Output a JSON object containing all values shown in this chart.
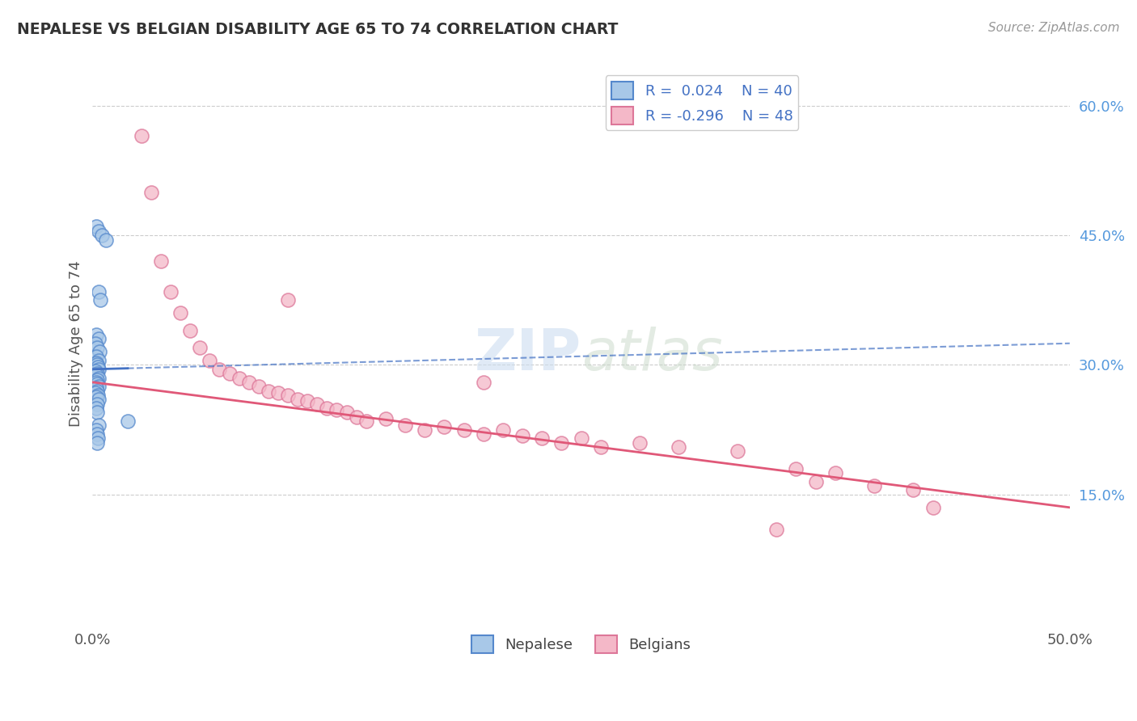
{
  "title": "NEPALESE VS BELGIAN DISABILITY AGE 65 TO 74 CORRELATION CHART",
  "source": "Source: ZipAtlas.com",
  "ylabel": "Disability Age 65 to 74",
  "xlim": [
    0.0,
    50.0
  ],
  "ylim": [
    0.0,
    65.0
  ],
  "nepalese_R": 0.024,
  "nepalese_N": 40,
  "belgian_R": -0.296,
  "belgian_N": 48,
  "nepalese_color": "#a8c8e8",
  "belgian_color": "#f4b8c8",
  "nepalese_edge_color": "#5588cc",
  "belgian_edge_color": "#dd7799",
  "nepalese_line_color": "#4472c4",
  "belgian_line_color": "#e05878",
  "nepalese_x": [
    0.2,
    0.3,
    0.5,
    0.7,
    0.3,
    0.4,
    0.2,
    0.3,
    0.15,
    0.25,
    0.35,
    0.2,
    0.3,
    0.18,
    0.22,
    0.28,
    0.32,
    0.15,
    0.25,
    0.2,
    0.3,
    0.25,
    0.18,
    0.22,
    0.3,
    0.2,
    0.25,
    0.15,
    0.28,
    0.2,
    0.3,
    0.22,
    0.18,
    0.25,
    1.8,
    0.3,
    0.2,
    0.25,
    0.28,
    0.22
  ],
  "nepalese_y": [
    46.0,
    45.5,
    45.0,
    44.5,
    38.5,
    37.5,
    33.5,
    33.0,
    32.5,
    32.0,
    31.5,
    31.0,
    30.5,
    30.2,
    30.0,
    29.8,
    29.5,
    29.3,
    29.0,
    28.8,
    28.5,
    28.3,
    28.0,
    27.8,
    27.5,
    27.3,
    27.0,
    26.8,
    26.5,
    26.3,
    26.0,
    25.5,
    25.0,
    24.5,
    23.5,
    23.0,
    22.5,
    22.0,
    21.5,
    21.0
  ],
  "belgian_x": [
    2.5,
    3.0,
    3.5,
    4.0,
    4.5,
    5.0,
    5.5,
    6.0,
    6.5,
    7.0,
    7.5,
    8.0,
    8.5,
    9.0,
    9.5,
    10.0,
    10.5,
    11.0,
    11.5,
    12.0,
    12.5,
    13.0,
    13.5,
    14.0,
    15.0,
    16.0,
    17.0,
    18.0,
    19.0,
    20.0,
    21.0,
    22.0,
    23.0,
    24.0,
    25.0,
    26.0,
    28.0,
    30.0,
    33.0,
    36.0,
    37.0,
    38.0,
    40.0,
    42.0,
    43.0,
    10.0,
    20.0,
    35.0
  ],
  "belgian_y": [
    56.5,
    50.0,
    42.0,
    38.5,
    36.0,
    34.0,
    32.0,
    30.5,
    29.5,
    29.0,
    28.5,
    28.0,
    27.5,
    27.0,
    26.8,
    26.5,
    26.0,
    25.8,
    25.5,
    25.0,
    24.8,
    24.5,
    24.0,
    23.5,
    23.8,
    23.0,
    22.5,
    22.8,
    22.5,
    22.0,
    22.5,
    21.8,
    21.5,
    21.0,
    21.5,
    20.5,
    21.0,
    20.5,
    20.0,
    18.0,
    16.5,
    17.5,
    16.0,
    15.5,
    13.5,
    37.5,
    28.0,
    11.0
  ],
  "legend_nepalese_label": "Nepalese",
  "legend_belgian_label": "Belgians",
  "background_color": "#ffffff",
  "grid_color": "#cccccc",
  "nep_line_x0": 0.0,
  "nep_line_x1": 50.0,
  "nep_line_y0": 29.5,
  "nep_line_y1": 32.5,
  "nep_solid_x1": 1.8,
  "bel_line_y0": 28.0,
  "bel_line_y1": 13.5
}
